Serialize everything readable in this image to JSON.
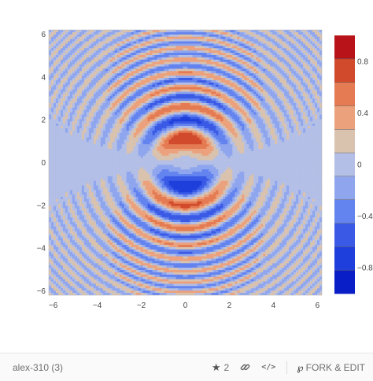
{
  "chart_data": {
    "type": "contour",
    "z_function": "approx. sin(x^2 + y^2) * exp-like radial modulation, antisymmetric in y",
    "x_range": [
      -6.2,
      6.2
    ],
    "y_range": [
      -6.2,
      6.2
    ],
    "x_ticks": [
      "−6",
      "−4",
      "−2",
      "0",
      "2",
      "4",
      "6"
    ],
    "x_tick_values": [
      -6,
      -4,
      -2,
      0,
      2,
      4,
      6
    ],
    "y_ticks": [
      "−6",
      "−4",
      "−2",
      "0",
      "2",
      "4",
      "6"
    ],
    "y_tick_values": [
      -6,
      -4,
      -2,
      0,
      2,
      4,
      6
    ],
    "z_min": -1,
    "z_max": 1,
    "contour_step": 0.2,
    "colorbar_ticks": [
      "0.8",
      "0.4",
      "0",
      "−0.4",
      "−0.8"
    ],
    "colorbar_tick_values": [
      0.8,
      0.4,
      0,
      -0.4,
      -0.8
    ],
    "colorscale": [
      "#0a1ec8",
      "#1f3fdc",
      "#3a5ae6",
      "#6383ef",
      "#8fa6ee",
      "#b3bfe6",
      "#d9c2ae",
      "#eca17d",
      "#e47b52",
      "#d24a2c",
      "#b71318"
    ],
    "legend_placement": "right"
  },
  "footer": {
    "author": "alex-310 (3)",
    "star_icon": "star-icon",
    "star_count": "2",
    "link_icon": "link-icon",
    "code_label": "</>",
    "fork_icon_glyph": "℘",
    "fork_label": "FORK & EDIT"
  }
}
